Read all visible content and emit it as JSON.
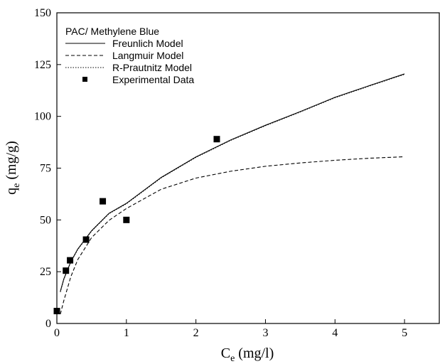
{
  "chart_data": {
    "type": "scatter",
    "title": "",
    "xlabel": "C",
    "xlabel_sub": "e",
    "xlabel_unit": " (mg/l)",
    "ylabel": "q",
    "ylabel_sub": "e",
    "ylabel_unit": " (mg/g)",
    "xlim": [
      0,
      5.5
    ],
    "ylim": [
      0,
      150
    ],
    "xticks": [
      0,
      1,
      2,
      3,
      4,
      5
    ],
    "yticks": [
      0,
      25,
      50,
      75,
      100,
      125,
      150
    ],
    "grid": false,
    "legend_placement": "top-left",
    "legend_title": "PAC/ Methylene Blue",
    "series": [
      {
        "name": "Freunlich Model",
        "kind": "line",
        "style": "solid",
        "x": [
          0.05,
          0.1,
          0.2,
          0.3,
          0.5,
          0.75,
          1.0,
          1.5,
          2.0,
          2.5,
          3.0,
          3.5,
          4.0,
          4.5,
          5.0
        ],
        "y": [
          15.5,
          21.5,
          29.8,
          35.9,
          44.8,
          53.2,
          58.0,
          70.5,
          80.4,
          88.6,
          95.7,
          102.3,
          109.2,
          114.9,
          120.5
        ]
      },
      {
        "name": "Langmuir Model",
        "kind": "line",
        "style": "dashed",
        "x": [
          0.05,
          0.1,
          0.2,
          0.3,
          0.5,
          0.75,
          1.0,
          1.5,
          2.0,
          2.5,
          3.0,
          3.5,
          4.0,
          4.5,
          5.0
        ],
        "y": [
          4.5,
          11.0,
          22.5,
          30.8,
          41.5,
          49.8,
          55.5,
          64.8,
          70.2,
          73.5,
          75.9,
          77.5,
          78.8,
          79.8,
          80.5
        ]
      },
      {
        "name": "R-Prautnitz Model",
        "kind": "line",
        "style": "dotted",
        "x": [
          0.05,
          0.1,
          0.2,
          0.3,
          0.5,
          0.75,
          1.0,
          1.5,
          2.0,
          2.5,
          3.0,
          3.5,
          4.0,
          4.5,
          5.0
        ],
        "y": [
          15.2,
          21.3,
          29.6,
          35.7,
          44.6,
          53.0,
          57.8,
          70.3,
          80.2,
          88.4,
          95.5,
          102.1,
          109.0,
          114.7,
          120.3
        ]
      },
      {
        "name": "Experimental Data",
        "kind": "scatter",
        "marker": "square",
        "x": [
          0.0,
          0.13,
          0.19,
          0.42,
          0.66,
          1.0,
          2.3
        ],
        "y": [
          6.0,
          25.5,
          30.5,
          40.5,
          59.0,
          50.0,
          89.0
        ]
      }
    ]
  }
}
